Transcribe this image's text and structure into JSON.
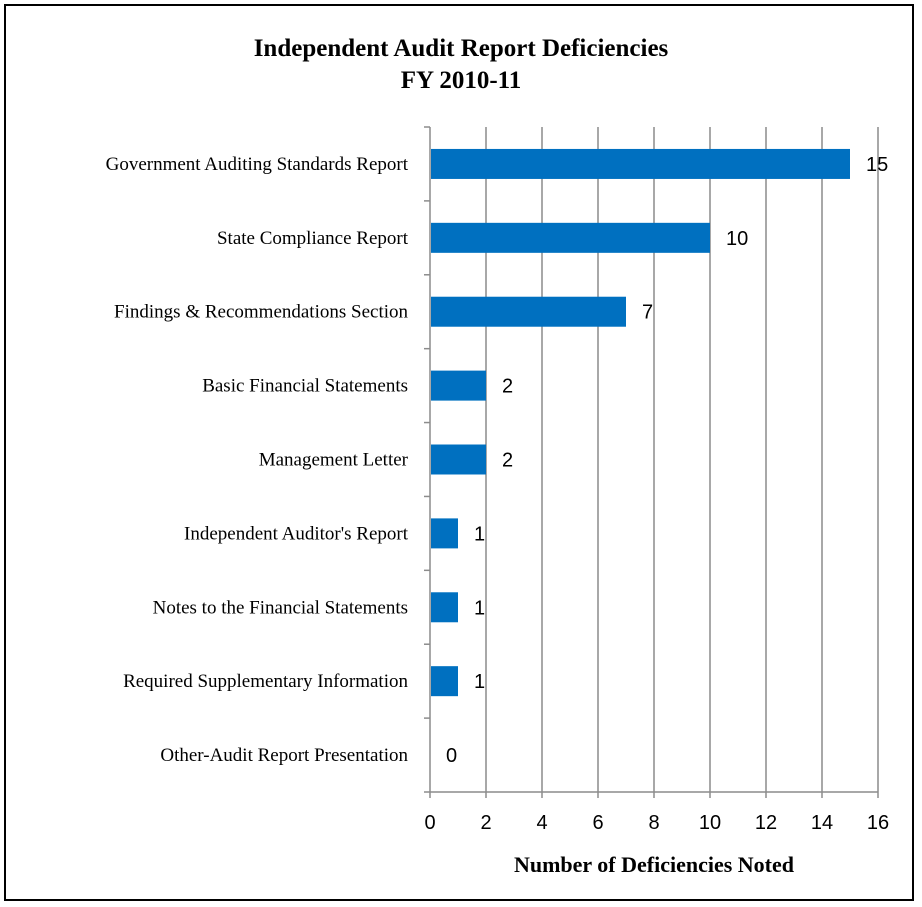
{
  "chart_data": {
    "type": "bar",
    "orientation": "horizontal",
    "title": [
      "Independent Audit Report Deficiencies",
      "FY 2010-11"
    ],
    "xlabel": "Number of Deficiencies Noted",
    "ylabel": "",
    "categories": [
      "Government Auditing Standards Report",
      "State Compliance Report",
      "Findings & Recommendations Section",
      "Basic Financial Statements",
      "Management Letter",
      "Independent Auditor's Report",
      "Notes to the Financial Statements",
      "Required Supplementary Information",
      "Other-Audit Report Presentation"
    ],
    "values": [
      15,
      10,
      7,
      2,
      2,
      1,
      1,
      1,
      0
    ],
    "xlim": [
      0,
      16
    ],
    "xticks": [
      0,
      2,
      4,
      6,
      8,
      10,
      12,
      14,
      16
    ],
    "grid": "vertical",
    "legend": "none",
    "data_labels": true,
    "colors": {
      "bar": "#0070C0",
      "grid": "#8c8c8c",
      "axis": "#8c8c8c"
    }
  }
}
